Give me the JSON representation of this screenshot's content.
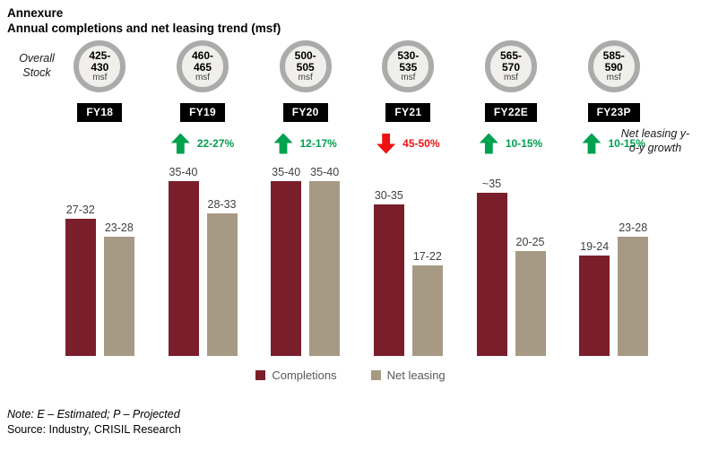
{
  "page": {
    "title": "Annexure",
    "subtitle": "Annual completions and net leasing trend (msf)"
  },
  "labels": {
    "overall_stock": "Overall Stock",
    "net_leasing_growth": "Net leasing y-o-y growth"
  },
  "colors": {
    "completions": "#7B1E2B",
    "net_leasing": "#A79A84",
    "positive": "#00A14F",
    "negative": "#EE1111",
    "circle_ring": "#ABABAB",
    "circle_fill": "#F0EFEC",
    "fy_box_bg": "#000000",
    "fy_box_text": "#FFFFFF"
  },
  "chart_data": {
    "type": "bar",
    "title": "Annual completions and net leasing trend (msf)",
    "categories": [
      "FY18",
      "FY19",
      "FY20",
      "FY21",
      "FY22E",
      "FY23P"
    ],
    "overall_stock_msf": [
      "425-430",
      "460-465",
      "500-505",
      "530-535",
      "565-570",
      "585-590"
    ],
    "stock_unit": "msf",
    "growth": [
      null,
      {
        "direction": "up",
        "label": "22-27%"
      },
      {
        "direction": "up",
        "label": "12-17%"
      },
      {
        "direction": "down",
        "label": "45-50%"
      },
      {
        "direction": "up",
        "label": "10-15%"
      },
      {
        "direction": "up",
        "label": "10-15%"
      }
    ],
    "series": [
      {
        "name": "Completions",
        "labels": [
          "27-32",
          "35-40",
          "35-40",
          "30-35",
          "~35",
          "19-24"
        ],
        "values_mid_msf": [
          29.5,
          37.5,
          37.5,
          32.5,
          35,
          21.5
        ]
      },
      {
        "name": "Net leasing",
        "labels": [
          "23-28",
          "28-33",
          "35-40",
          "17-22",
          "20-25",
          "23-28"
        ],
        "values_mid_msf": [
          25.5,
          30.5,
          37.5,
          19.5,
          22.5,
          25.5
        ]
      }
    ],
    "ylim": [
      0,
      40
    ],
    "grid": false,
    "legend_position": "bottom"
  },
  "footer": {
    "note": "Note: E – Estimated; P – Projected",
    "source": "Source: Industry, CRISIL Research"
  }
}
